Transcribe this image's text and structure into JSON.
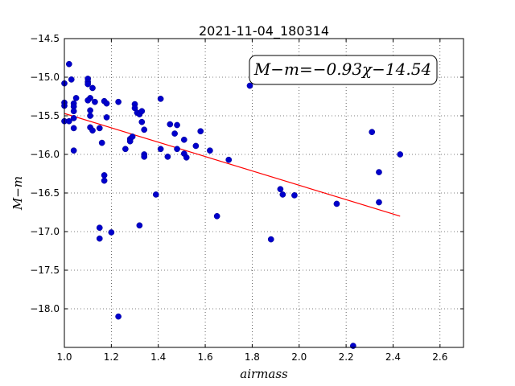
{
  "chart_data": {
    "type": "scatter",
    "title": "2021-11-04_180314",
    "xlabel": "airmass",
    "ylabel": "M−m",
    "xlim": [
      1.0,
      2.7
    ],
    "ylim": [
      -14.5,
      -18.5
    ],
    "y_inverted": true,
    "grid": true,
    "x_ticks": [
      "1.0",
      "1.2",
      "1.4",
      "1.6",
      "1.8",
      "2.0",
      "2.2",
      "2.4",
      "2.6"
    ],
    "y_ticks": [
      "−14.5",
      "−15.0",
      "−15.5",
      "−16.0",
      "−16.5",
      "−17.0",
      "−17.5",
      "−18.0"
    ],
    "annotation": "M−m=−0.93χ−14.54",
    "marker_color": "#0000cc",
    "fit_color": "#ff0000",
    "fit": {
      "slope": -0.93,
      "intercept": -14.54,
      "x_range": [
        1.0,
        2.43
      ]
    },
    "points": [
      {
        "x": 1.0,
        "y": -15.08
      },
      {
        "x": 1.0,
        "y": -15.33
      },
      {
        "x": 1.0,
        "y": -15.37
      },
      {
        "x": 1.0,
        "y": -15.57
      },
      {
        "x": 1.02,
        "y": -14.83
      },
      {
        "x": 1.03,
        "y": -15.03
      },
      {
        "x": 1.02,
        "y": -15.57
      },
      {
        "x": 1.04,
        "y": -15.34
      },
      {
        "x": 1.04,
        "y": -15.38
      },
      {
        "x": 1.04,
        "y": -15.44
      },
      {
        "x": 1.04,
        "y": -15.53
      },
      {
        "x": 1.05,
        "y": -15.27
      },
      {
        "x": 1.04,
        "y": -15.66
      },
      {
        "x": 1.04,
        "y": -15.95
      },
      {
        "x": 1.1,
        "y": -15.02
      },
      {
        "x": 1.1,
        "y": -15.06
      },
      {
        "x": 1.1,
        "y": -15.09
      },
      {
        "x": 1.11,
        "y": -15.27
      },
      {
        "x": 1.1,
        "y": -15.3
      },
      {
        "x": 1.13,
        "y": -15.32
      },
      {
        "x": 1.12,
        "y": -15.14
      },
      {
        "x": 1.11,
        "y": -15.43
      },
      {
        "x": 1.11,
        "y": -15.5
      },
      {
        "x": 1.11,
        "y": -15.65
      },
      {
        "x": 1.12,
        "y": -15.69
      },
      {
        "x": 1.15,
        "y": -15.66
      },
      {
        "x": 1.17,
        "y": -15.31
      },
      {
        "x": 1.18,
        "y": -15.34
      },
      {
        "x": 1.18,
        "y": -15.52
      },
      {
        "x": 1.16,
        "y": -15.85
      },
      {
        "x": 1.17,
        "y": -16.27
      },
      {
        "x": 1.17,
        "y": -16.34
      },
      {
        "x": 1.15,
        "y": -16.95
      },
      {
        "x": 1.15,
        "y": -17.09
      },
      {
        "x": 1.2,
        "y": -17.01
      },
      {
        "x": 1.23,
        "y": -15.32
      },
      {
        "x": 1.23,
        "y": -18.1
      },
      {
        "x": 1.26,
        "y": -15.93
      },
      {
        "x": 1.28,
        "y": -15.8
      },
      {
        "x": 1.28,
        "y": -15.83
      },
      {
        "x": 1.29,
        "y": -15.77
      },
      {
        "x": 1.3,
        "y": -15.35
      },
      {
        "x": 1.3,
        "y": -15.4
      },
      {
        "x": 1.31,
        "y": -15.46
      },
      {
        "x": 1.32,
        "y": -15.48
      },
      {
        "x": 1.33,
        "y": -15.58
      },
      {
        "x": 1.33,
        "y": -15.44
      },
      {
        "x": 1.34,
        "y": -15.68
      },
      {
        "x": 1.34,
        "y": -16.0
      },
      {
        "x": 1.34,
        "y": -16.03
      },
      {
        "x": 1.32,
        "y": -16.92
      },
      {
        "x": 1.39,
        "y": -16.52
      },
      {
        "x": 1.41,
        "y": -15.28
      },
      {
        "x": 1.41,
        "y": -15.93
      },
      {
        "x": 1.44,
        "y": -16.03
      },
      {
        "x": 1.45,
        "y": -15.61
      },
      {
        "x": 1.47,
        "y": -15.73
      },
      {
        "x": 1.48,
        "y": -15.62
      },
      {
        "x": 1.48,
        "y": -15.93
      },
      {
        "x": 1.51,
        "y": -15.99
      },
      {
        "x": 1.51,
        "y": -15.81
      },
      {
        "x": 1.52,
        "y": -16.04
      },
      {
        "x": 1.56,
        "y": -15.89
      },
      {
        "x": 1.58,
        "y": -15.7
      },
      {
        "x": 1.62,
        "y": -15.95
      },
      {
        "x": 1.65,
        "y": -16.8
      },
      {
        "x": 1.7,
        "y": -16.07
      },
      {
        "x": 1.79,
        "y": -15.11
      },
      {
        "x": 1.88,
        "y": -17.1
      },
      {
        "x": 1.92,
        "y": -16.45
      },
      {
        "x": 1.93,
        "y": -16.52
      },
      {
        "x": 1.98,
        "y": -16.53
      },
      {
        "x": 2.16,
        "y": -16.64
      },
      {
        "x": 2.23,
        "y": -18.48
      },
      {
        "x": 2.31,
        "y": -15.71
      },
      {
        "x": 2.34,
        "y": -16.23
      },
      {
        "x": 2.34,
        "y": -16.62
      },
      {
        "x": 2.43,
        "y": -16.0
      }
    ]
  }
}
